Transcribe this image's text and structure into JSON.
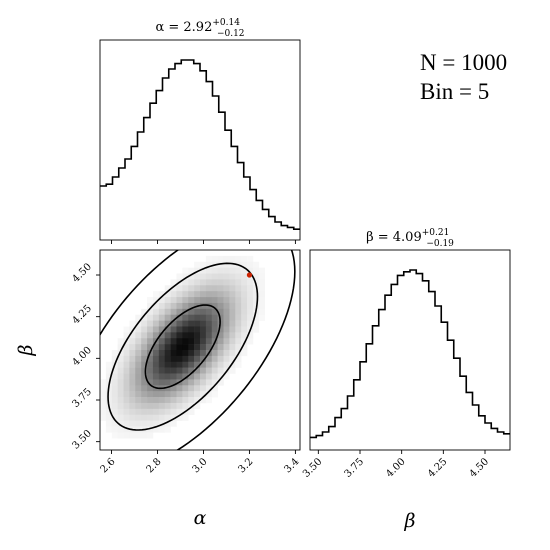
{
  "info": {
    "n_text": "N = 1000",
    "bin_text": "Bin = 5"
  },
  "chart_data": {
    "type": "corner",
    "parameters": [
      {
        "name": "α",
        "title_main": "α = 2.92",
        "title_sup": "+0.14",
        "title_sub": "−0.12",
        "xlabel": "α",
        "xlim": [
          2.55,
          3.42
        ],
        "ticks": [
          2.6,
          2.8,
          3.0,
          3.2,
          3.4
        ],
        "tick_labels": [
          "2.6",
          "2.8",
          "3.0",
          "3.2",
          "3.4"
        ],
        "hist": [
          0.3,
          0.31,
          0.35,
          0.4,
          0.45,
          0.52,
          0.6,
          0.68,
          0.76,
          0.83,
          0.9,
          0.95,
          0.98,
          1.0,
          1.0,
          0.98,
          0.94,
          0.88,
          0.8,
          0.71,
          0.61,
          0.52,
          0.43,
          0.35,
          0.28,
          0.22,
          0.17,
          0.13,
          0.1,
          0.08,
          0.07,
          0.06
        ]
      },
      {
        "name": "β",
        "title_main": "β = 4.09",
        "title_sup": "+0.21",
        "title_sub": "−0.19",
        "xlabel": "β",
        "ylabel": "β",
        "xlim": [
          3.45,
          4.65
        ],
        "ticks": [
          3.5,
          3.75,
          4.0,
          4.25,
          4.5
        ],
        "tick_labels": [
          "3.50",
          "3.75",
          "4.00",
          "4.25",
          "4.50"
        ],
        "hist": [
          0.07,
          0.08,
          0.1,
          0.13,
          0.18,
          0.23,
          0.3,
          0.39,
          0.49,
          0.59,
          0.69,
          0.78,
          0.86,
          0.92,
          0.97,
          0.99,
          1.0,
          0.98,
          0.94,
          0.88,
          0.8,
          0.71,
          0.61,
          0.51,
          0.41,
          0.32,
          0.25,
          0.19,
          0.15,
          0.12,
          0.1,
          0.09
        ]
      }
    ],
    "joint": {
      "x_mean": 2.91,
      "y_mean": 4.07,
      "x_sd": 0.13,
      "y_sd": 0.2,
      "rho": 0.6,
      "contour_levels_sigma": [
        1,
        2,
        3
      ],
      "marker": {
        "x": 3.2,
        "y": 4.5,
        "color": "#cc2200"
      }
    }
  }
}
